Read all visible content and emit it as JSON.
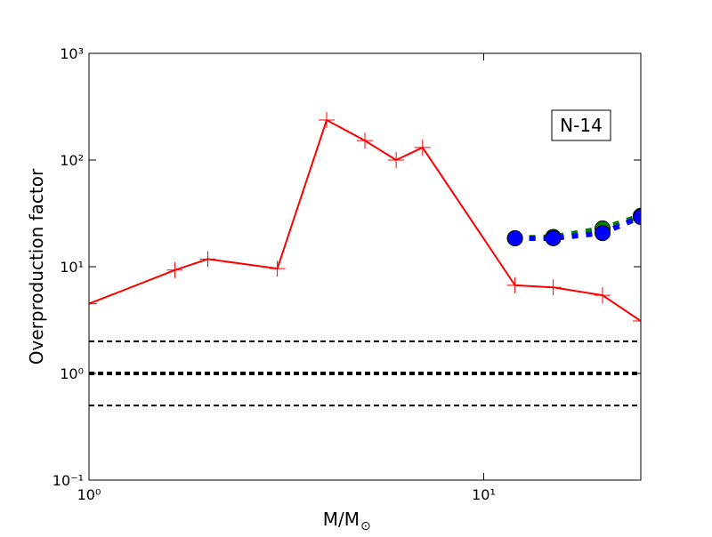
{
  "chart_data": {
    "type": "line",
    "ylabel": "Overproduction factor",
    "xlabel": "M/M",
    "xlabel_sub": "⊙",
    "annotation": "N-14",
    "xscale": "log",
    "yscale": "log",
    "xlim": [
      1,
      25
    ],
    "ylim": [
      0.1,
      1000
    ],
    "xticks": [
      {
        "value": 1,
        "label": "10⁰"
      },
      {
        "value": 10,
        "label": "10¹"
      }
    ],
    "yticks": [
      {
        "value": 0.1,
        "label": "10⁻¹"
      },
      {
        "value": 1,
        "label": "10⁰"
      },
      {
        "value": 10,
        "label": "10¹"
      },
      {
        "value": 100,
        "label": "10²"
      },
      {
        "value": 1000,
        "label": "10³"
      }
    ],
    "hlines": [
      {
        "value": 2,
        "color": "#000000",
        "linewidth": 2
      },
      {
        "value": 1,
        "color": "#000000",
        "linewidth": 4
      },
      {
        "value": 0.5,
        "color": "#000000",
        "linewidth": 2
      }
    ],
    "series": [
      {
        "color": "#ff0000",
        "marker": "plus",
        "linestyle": "solid",
        "linewidth": 2,
        "x": [
          1,
          1.65,
          2,
          3,
          4,
          5,
          6,
          7,
          12,
          15,
          20,
          25
        ],
        "values": [
          4.5,
          9.3,
          11.8,
          9.6,
          237,
          152,
          100,
          131,
          6.7,
          6.4,
          5.4,
          3.1
        ]
      },
      {
        "color": "#008000",
        "marker": "circle",
        "linestyle": "dashed",
        "linewidth": 6,
        "x": [
          12,
          15,
          20,
          25
        ],
        "values": [
          18.5,
          19,
          22.8,
          30
        ]
      },
      {
        "color": "#0000ff",
        "marker": "circle",
        "linestyle": "dashed",
        "linewidth": 6,
        "x": [
          12,
          15,
          20,
          25
        ],
        "values": [
          18.5,
          18.5,
          20.7,
          29.3
        ]
      }
    ]
  }
}
